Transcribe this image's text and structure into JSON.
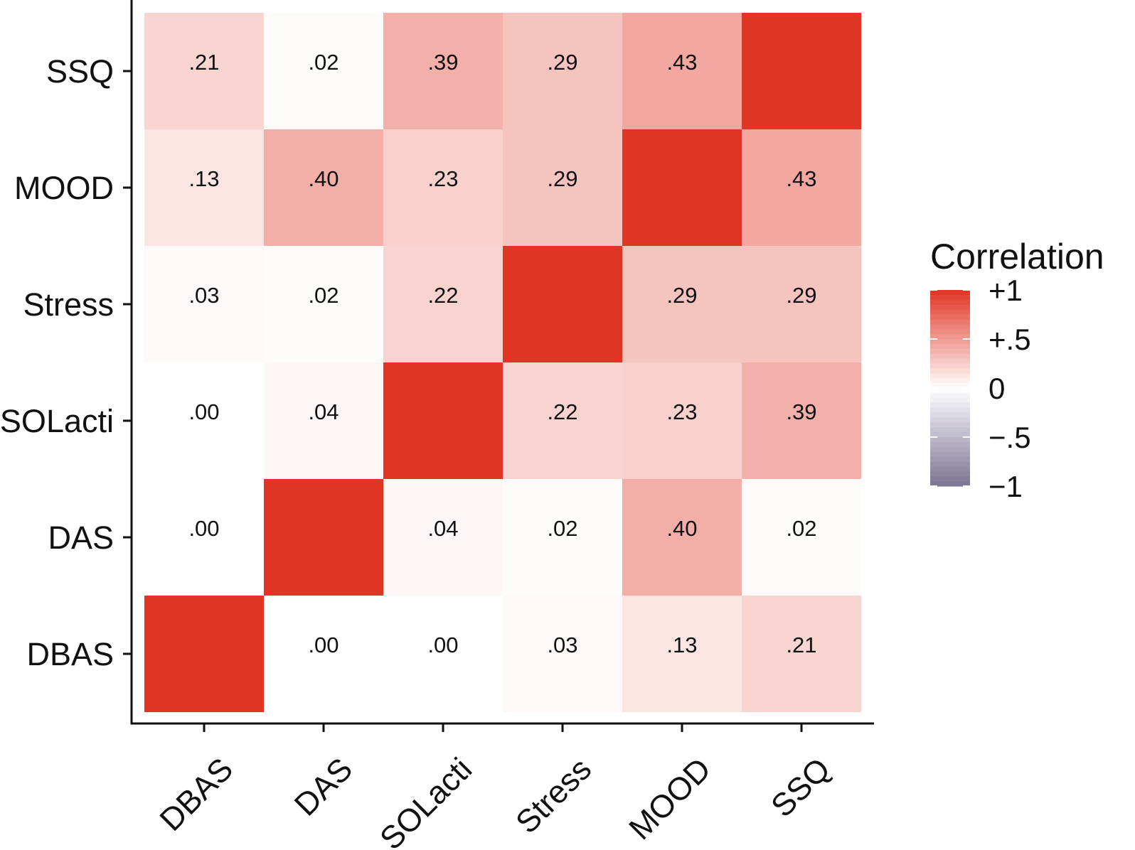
{
  "chart_data": {
    "type": "heatmap",
    "x_categories": [
      "DBAS",
      "DAS",
      "SOLacti",
      "Stress",
      "MOOD",
      "SSQ"
    ],
    "y_categories": [
      "DBAS",
      "DAS",
      "SOLacti",
      "Stress",
      "MOOD",
      "SSQ"
    ],
    "matrix": [
      [
        1.0,
        0.0,
        0.0,
        0.03,
        0.13,
        0.21
      ],
      [
        0.0,
        1.0,
        0.04,
        0.02,
        0.4,
        0.02
      ],
      [
        0.0,
        0.04,
        1.0,
        0.22,
        0.23,
        0.39
      ],
      [
        0.03,
        0.02,
        0.22,
        1.0,
        0.29,
        0.29
      ],
      [
        0.13,
        0.4,
        0.23,
        0.29,
        1.0,
        0.43
      ],
      [
        0.21,
        0.02,
        0.39,
        0.29,
        0.43,
        1.0
      ]
    ],
    "cell_labels": [
      [
        "",
        ".00",
        ".00",
        ".03",
        ".13",
        ".21"
      ],
      [
        ".00",
        "",
        ".04",
        ".02",
        ".40",
        ".02"
      ],
      [
        ".00",
        ".04",
        "",
        ".22",
        ".23",
        ".39"
      ],
      [
        ".03",
        ".02",
        ".22",
        "",
        ".29",
        ".29"
      ],
      [
        ".13",
        ".40",
        ".23",
        ".29",
        "",
        ".43"
      ],
      [
        ".21",
        ".02",
        ".39",
        ".29",
        ".43",
        ""
      ]
    ],
    "legend": {
      "title": "Correlation",
      "ticks": [
        "+1",
        "+.5",
        "0",
        "−.5",
        "−1"
      ],
      "tick_values": [
        1,
        0.5,
        0,
        -0.5,
        -1
      ],
      "range": [
        -1,
        1
      ],
      "placement": "right"
    },
    "colors": {
      "positive": "#E03524",
      "zero": "#FFFFFF",
      "negative": "#7B7393"
    },
    "grid": false
  }
}
